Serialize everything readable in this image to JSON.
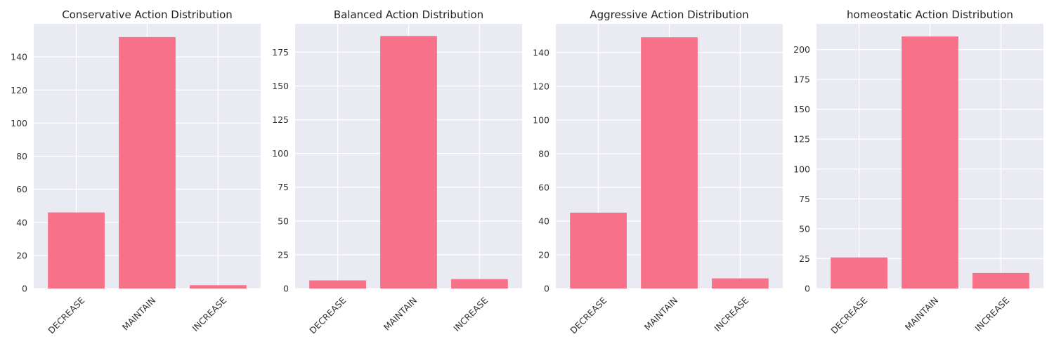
{
  "colors": {
    "bar": "#f77189",
    "plot_background": "#eaeaf2",
    "grid": "#ffffff"
  },
  "chart_data": [
    {
      "type": "bar",
      "title": "Conservative Action Distribution",
      "categories": [
        "DECREASE",
        "MAINTAIN",
        "INCREASE"
      ],
      "values": [
        46,
        152,
        2
      ],
      "yticks": [
        0,
        20,
        40,
        60,
        80,
        100,
        120,
        140
      ],
      "ylim": [
        0,
        160
      ],
      "grid": true
    },
    {
      "type": "bar",
      "title": "Balanced Action Distribution",
      "categories": [
        "DECREASE",
        "MAINTAIN",
        "INCREASE"
      ],
      "values": [
        6,
        187,
        7
      ],
      "yticks": [
        0,
        25,
        50,
        75,
        100,
        125,
        150,
        175
      ],
      "ylim": [
        0,
        196
      ],
      "grid": true
    },
    {
      "type": "bar",
      "title": "Aggressive Action Distribution",
      "categories": [
        "DECREASE",
        "MAINTAIN",
        "INCREASE"
      ],
      "values": [
        45,
        149,
        6
      ],
      "yticks": [
        0,
        20,
        40,
        60,
        80,
        100,
        120,
        140
      ],
      "ylim": [
        0,
        157
      ],
      "grid": true
    },
    {
      "type": "bar",
      "title": "homeostatic Action Distribution",
      "categories": [
        "DECREASE",
        "MAINTAIN",
        "INCREASE"
      ],
      "values": [
        26,
        211,
        13
      ],
      "yticks": [
        0,
        25,
        50,
        75,
        100,
        125,
        150,
        175,
        200
      ],
      "ylim": [
        0,
        221.5
      ],
      "grid": true
    }
  ]
}
